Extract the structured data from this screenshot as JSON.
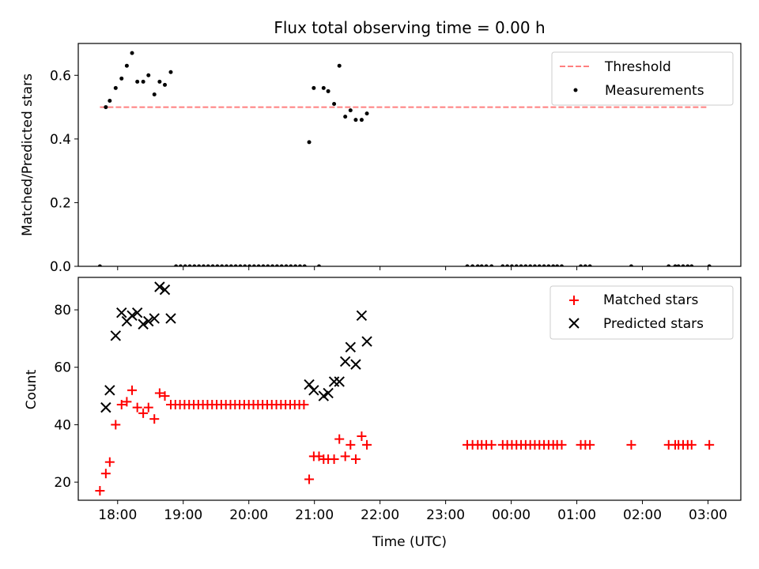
{
  "chart_data": [
    {
      "type": "scatter",
      "title": "Flux total observing time = 0.00 h",
      "xlabel": "",
      "ylabel": "Matched/Predicted stars",
      "x_unit": "hours since 18:00 UTC",
      "xlim": [
        -0.6,
        9.5
      ],
      "ylim": [
        0,
        0.7
      ],
      "xtick_values": [
        0,
        1,
        2,
        3,
        4,
        5,
        6,
        7,
        8,
        9
      ],
      "ytick_values": [
        0.0,
        0.2,
        0.4,
        0.6
      ],
      "ytick_labels": [
        "0.0",
        "0.2",
        "0.4",
        "0.6"
      ],
      "legend_position": "top-right",
      "threshold": {
        "name": "Threshold",
        "color": "#ff7f7f",
        "y": 0.5,
        "x_range": [
          -0.27,
          9.0
        ]
      },
      "series": [
        {
          "name": "Measurements",
          "color": "#000000",
          "points": [
            [
              -0.27,
              0.0
            ],
            [
              -0.18,
              0.5
            ],
            [
              -0.12,
              0.52
            ],
            [
              -0.03,
              0.56
            ],
            [
              0.06,
              0.59
            ],
            [
              0.14,
              0.63
            ],
            [
              0.22,
              0.67
            ],
            [
              0.3,
              0.58
            ],
            [
              0.39,
              0.58
            ],
            [
              0.47,
              0.6
            ],
            [
              0.56,
              0.54
            ],
            [
              0.64,
              0.58
            ],
            [
              0.72,
              0.57
            ],
            [
              0.81,
              0.61
            ],
            [
              0.89,
              0.0
            ],
            [
              0.96,
              0.0
            ],
            [
              1.03,
              0.0
            ],
            [
              1.1,
              0.0
            ],
            [
              1.17,
              0.0
            ],
            [
              1.24,
              0.0
            ],
            [
              1.31,
              0.0
            ],
            [
              1.38,
              0.0
            ],
            [
              1.45,
              0.0
            ],
            [
              1.52,
              0.0
            ],
            [
              1.59,
              0.0
            ],
            [
              1.66,
              0.0
            ],
            [
              1.73,
              0.0
            ],
            [
              1.8,
              0.0
            ],
            [
              1.87,
              0.0
            ],
            [
              1.94,
              0.0
            ],
            [
              2.01,
              0.0
            ],
            [
              2.08,
              0.0
            ],
            [
              2.15,
              0.0
            ],
            [
              2.22,
              0.0
            ],
            [
              2.29,
              0.0
            ],
            [
              2.36,
              0.0
            ],
            [
              2.43,
              0.0
            ],
            [
              2.5,
              0.0
            ],
            [
              2.57,
              0.0
            ],
            [
              2.64,
              0.0
            ],
            [
              2.71,
              0.0
            ],
            [
              2.78,
              0.0
            ],
            [
              2.85,
              0.0
            ],
            [
              2.92,
              0.39
            ],
            [
              2.99,
              0.56
            ],
            [
              3.07,
              0.0
            ],
            [
              3.14,
              0.56
            ],
            [
              3.21,
              0.55
            ],
            [
              3.3,
              0.51
            ],
            [
              3.38,
              0.63
            ],
            [
              3.47,
              0.47
            ],
            [
              3.55,
              0.49
            ],
            [
              3.63,
              0.46
            ],
            [
              3.72,
              0.46
            ],
            [
              3.8,
              0.48
            ],
            [
              5.33,
              0.0
            ],
            [
              5.41,
              0.0
            ],
            [
              5.49,
              0.0
            ],
            [
              5.55,
              0.0
            ],
            [
              5.62,
              0.0
            ],
            [
              5.7,
              0.0
            ],
            [
              5.87,
              0.0
            ],
            [
              5.94,
              0.0
            ],
            [
              6.01,
              0.0
            ],
            [
              6.08,
              0.0
            ],
            [
              6.15,
              0.0
            ],
            [
              6.22,
              0.0
            ],
            [
              6.29,
              0.0
            ],
            [
              6.36,
              0.0
            ],
            [
              6.43,
              0.0
            ],
            [
              6.5,
              0.0
            ],
            [
              6.57,
              0.0
            ],
            [
              6.64,
              0.0
            ],
            [
              6.7,
              0.0
            ],
            [
              6.77,
              0.0
            ],
            [
              7.06,
              0.0
            ],
            [
              7.13,
              0.0
            ],
            [
              7.2,
              0.0
            ],
            [
              7.83,
              0.0
            ],
            [
              8.4,
              0.0
            ],
            [
              8.5,
              0.0
            ],
            [
              8.55,
              0.0
            ],
            [
              8.62,
              0.0
            ],
            [
              8.69,
              0.0
            ],
            [
              8.75,
              0.0
            ],
            [
              9.02,
              0.0
            ]
          ]
        }
      ]
    },
    {
      "type": "scatter",
      "title": "",
      "xlabel": "Time (UTC)",
      "ylabel": "Count",
      "x_unit": "hours since 18:00 UTC",
      "xlim": [
        -0.6,
        9.5
      ],
      "ylim": [
        13.7,
        91.3
      ],
      "xtick_values": [
        0,
        1,
        2,
        3,
        4,
        5,
        6,
        7,
        8,
        9
      ],
      "xtick_labels": [
        "18:00",
        "19:00",
        "20:00",
        "21:00",
        "22:00",
        "23:00",
        "00:00",
        "01:00",
        "02:00",
        "03:00"
      ],
      "ytick_values": [
        20,
        40,
        60,
        80
      ],
      "ytick_labels": [
        "20",
        "40",
        "60",
        "80"
      ],
      "legend_position": "top-right",
      "series": [
        {
          "name": "Matched stars",
          "marker": "plus",
          "color": "#ff0000",
          "points": [
            [
              -0.27,
              17
            ],
            [
              -0.18,
              23
            ],
            [
              -0.12,
              27
            ],
            [
              -0.03,
              40
            ],
            [
              0.06,
              47
            ],
            [
              0.14,
              48
            ],
            [
              0.22,
              52
            ],
            [
              0.3,
              46
            ],
            [
              0.39,
              44
            ],
            [
              0.47,
              46
            ],
            [
              0.56,
              42
            ],
            [
              0.64,
              51
            ],
            [
              0.72,
              50
            ],
            [
              0.81,
              47
            ],
            [
              0.88,
              47
            ],
            [
              0.95,
              47
            ],
            [
              1.02,
              47
            ],
            [
              1.09,
              47
            ],
            [
              1.16,
              47
            ],
            [
              1.23,
              47
            ],
            [
              1.3,
              47
            ],
            [
              1.37,
              47
            ],
            [
              1.44,
              47
            ],
            [
              1.51,
              47
            ],
            [
              1.58,
              47
            ],
            [
              1.65,
              47
            ],
            [
              1.72,
              47
            ],
            [
              1.79,
              47
            ],
            [
              1.86,
              47
            ],
            [
              1.93,
              47
            ],
            [
              2.0,
              47
            ],
            [
              2.07,
              47
            ],
            [
              2.14,
              47
            ],
            [
              2.21,
              47
            ],
            [
              2.28,
              47
            ],
            [
              2.35,
              47
            ],
            [
              2.42,
              47
            ],
            [
              2.49,
              47
            ],
            [
              2.56,
              47
            ],
            [
              2.63,
              47
            ],
            [
              2.7,
              47
            ],
            [
              2.77,
              47
            ],
            [
              2.84,
              47
            ],
            [
              2.92,
              21
            ],
            [
              2.99,
              29
            ],
            [
              3.07,
              29
            ],
            [
              3.14,
              28
            ],
            [
              3.21,
              28
            ],
            [
              3.3,
              28
            ],
            [
              3.38,
              35
            ],
            [
              3.47,
              29
            ],
            [
              3.55,
              33
            ],
            [
              3.63,
              28
            ],
            [
              3.72,
              36
            ],
            [
              3.8,
              33
            ],
            [
              5.33,
              33
            ],
            [
              5.41,
              33
            ],
            [
              5.49,
              33
            ],
            [
              5.55,
              33
            ],
            [
              5.62,
              33
            ],
            [
              5.7,
              33
            ],
            [
              5.87,
              33
            ],
            [
              5.94,
              33
            ],
            [
              6.01,
              33
            ],
            [
              6.08,
              33
            ],
            [
              6.15,
              33
            ],
            [
              6.22,
              33
            ],
            [
              6.29,
              33
            ],
            [
              6.36,
              33
            ],
            [
              6.43,
              33
            ],
            [
              6.5,
              33
            ],
            [
              6.57,
              33
            ],
            [
              6.64,
              33
            ],
            [
              6.7,
              33
            ],
            [
              6.77,
              33
            ],
            [
              7.06,
              33
            ],
            [
              7.13,
              33
            ],
            [
              7.2,
              33
            ],
            [
              7.83,
              33
            ],
            [
              8.4,
              33
            ],
            [
              8.5,
              33
            ],
            [
              8.55,
              33
            ],
            [
              8.62,
              33
            ],
            [
              8.69,
              33
            ],
            [
              8.75,
              33
            ],
            [
              9.02,
              33
            ]
          ]
        },
        {
          "name": "Predicted stars",
          "marker": "x",
          "color": "#000000",
          "points": [
            [
              -0.18,
              46
            ],
            [
              -0.12,
              52
            ],
            [
              -0.03,
              71
            ],
            [
              0.06,
              79
            ],
            [
              0.14,
              76
            ],
            [
              0.22,
              78
            ],
            [
              0.3,
              79
            ],
            [
              0.39,
              75
            ],
            [
              0.47,
              76
            ],
            [
              0.56,
              77
            ],
            [
              0.64,
              88
            ],
            [
              0.72,
              87
            ],
            [
              0.81,
              77
            ],
            [
              2.92,
              54
            ],
            [
              2.99,
              52
            ],
            [
              3.14,
              50
            ],
            [
              3.21,
              51
            ],
            [
              3.3,
              55
            ],
            [
              3.38,
              55
            ],
            [
              3.47,
              62
            ],
            [
              3.55,
              67
            ],
            [
              3.63,
              61
            ],
            [
              3.72,
              78
            ],
            [
              3.8,
              69
            ]
          ]
        }
      ]
    }
  ]
}
